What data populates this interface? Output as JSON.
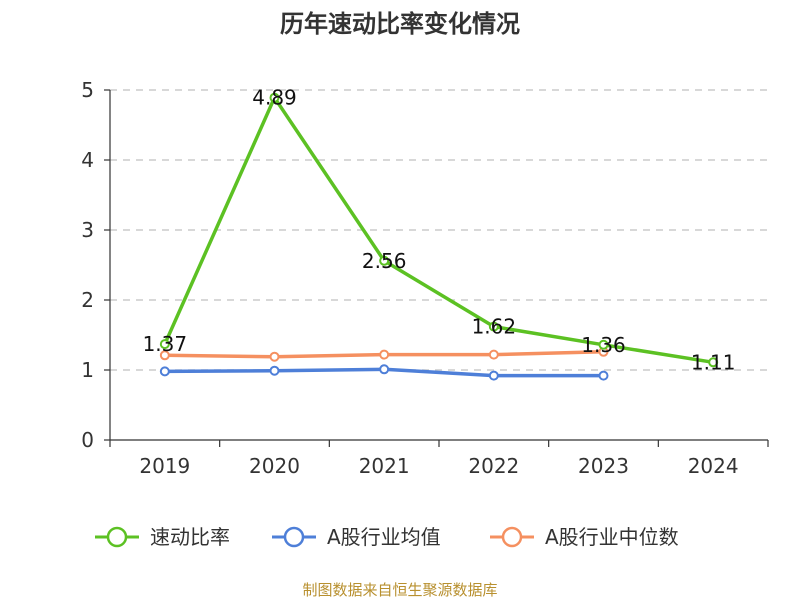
{
  "chart_data": {
    "type": "line",
    "title": "历年速动比率变化情况",
    "categories": [
      "2019",
      "2020",
      "2021",
      "2022",
      "2023",
      "2024"
    ],
    "ylim": [
      0,
      5
    ],
    "yticks": [
      0,
      1,
      2,
      3,
      4,
      5
    ],
    "grid": true,
    "legend_position": "bottom",
    "series": [
      {
        "name": "速动比率",
        "color": "#5cc123",
        "values": [
          1.37,
          4.89,
          2.56,
          1.62,
          1.36,
          1.11
        ],
        "labels": [
          "1.37",
          "4.89",
          "2.56",
          "1.62",
          "1.36",
          "1.11"
        ]
      },
      {
        "name": "A股行业均值",
        "color": "#4e7fd8",
        "values": [
          0.98,
          0.99,
          1.01,
          0.92,
          0.92,
          null
        ]
      },
      {
        "name": "A股行业中位数",
        "color": "#f59060",
        "values": [
          1.21,
          1.19,
          1.22,
          1.22,
          1.26,
          null
        ]
      }
    ],
    "source": "制图数据来自恒生聚源数据库"
  }
}
